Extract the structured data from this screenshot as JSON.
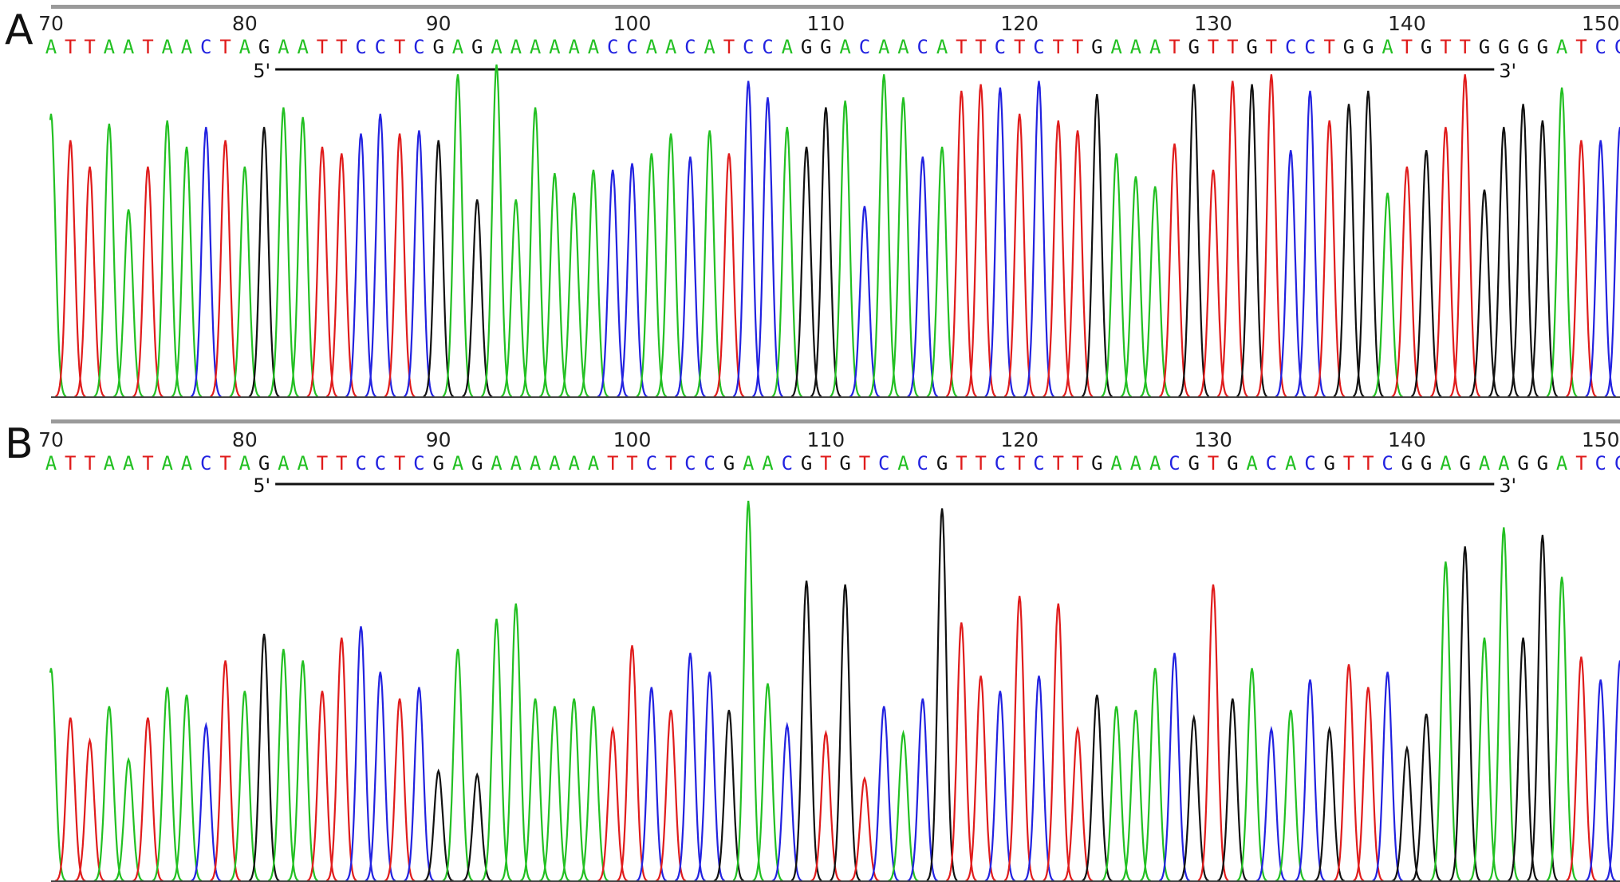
{
  "colors": {
    "A": "#22c022",
    "C": "#2222e0",
    "G": "#111111",
    "T": "#e01c1c"
  },
  "chart_data": [
    {
      "type": "line",
      "panel": "A",
      "xlim": [
        70,
        151
      ],
      "ticks": [
        70,
        80,
        90,
        100,
        110,
        120,
        130,
        140,
        150
      ],
      "tick_labels": [
        "70",
        "80",
        "90",
        "100",
        "110",
        "120",
        "130",
        "140",
        "150"
      ],
      "sequence": "ATTAATAACTAGAATTCCTCGAGAAAAAACCAACATCCAGGACAACATTCTCTTGAAATGTTGTCCTGGATGTTGGGGATCCTC",
      "primer": {
        "start": 81,
        "end": 145,
        "label_5": "5'",
        "label_3": "3'"
      },
      "peak_heights": [
        0.86,
        0.78,
        0.7,
        0.83,
        0.57,
        0.7,
        0.84,
        0.76,
        0.82,
        0.78,
        0.7,
        0.82,
        0.88,
        0.85,
        0.76,
        0.74,
        0.8,
        0.86,
        0.8,
        0.81,
        0.78,
        0.98,
        0.6,
        1.01,
        0.6,
        0.88,
        0.68,
        0.62,
        0.69,
        0.69,
        0.71,
        0.74,
        0.8,
        0.73,
        0.81,
        0.74,
        0.96,
        0.91,
        0.82,
        0.76,
        0.88,
        0.9,
        0.58,
        0.98,
        0.91,
        0.73,
        0.76,
        0.93,
        0.95,
        0.94,
        0.86,
        0.96,
        0.84,
        0.81,
        0.92,
        0.74,
        0.67,
        0.64,
        0.77,
        0.95,
        0.69,
        0.96,
        0.95,
        0.98,
        0.75,
        0.93,
        0.84,
        0.89,
        0.93,
        0.62,
        0.7,
        0.75,
        0.82,
        0.98,
        0.63,
        0.82,
        0.89,
        0.84,
        0.94,
        0.78,
        0.78,
        0.82,
        0.84,
        0.73
      ]
    },
    {
      "type": "line",
      "panel": "B",
      "xlim": [
        70,
        151
      ],
      "ticks": [
        70,
        80,
        90,
        100,
        110,
        120,
        130,
        140,
        150
      ],
      "tick_labels": [
        "70",
        "80",
        "90",
        "100",
        "110",
        "120",
        "130",
        "140",
        "150"
      ],
      "sequence": "ATTAATAACTAGAATTCCTCGAGAAAAAATTCTCCGAACGTGTCACGTTCTCTTGAAACGTGACACGTTCGGAGAAGGATCCT",
      "primer": {
        "start": 81,
        "end": 145,
        "label_5": "5'",
        "label_3": "3'"
      },
      "peak_heights": [
        0.56,
        0.43,
        0.37,
        0.46,
        0.32,
        0.43,
        0.51,
        0.49,
        0.41,
        0.58,
        0.5,
        0.65,
        0.61,
        0.58,
        0.5,
        0.64,
        0.67,
        0.55,
        0.48,
        0.51,
        0.29,
        0.61,
        0.28,
        0.69,
        0.73,
        0.48,
        0.46,
        0.48,
        0.46,
        0.4,
        0.62,
        0.51,
        0.45,
        0.6,
        0.55,
        0.45,
        1.0,
        0.52,
        0.41,
        0.79,
        0.39,
        0.78,
        0.27,
        0.46,
        0.39,
        0.48,
        0.98,
        0.68,
        0.54,
        0.5,
        0.75,
        0.54,
        0.73,
        0.4,
        0.49,
        0.46,
        0.45,
        0.56,
        0.6,
        0.43,
        0.78,
        0.48,
        0.56,
        0.4,
        0.45,
        0.53,
        0.4,
        0.57,
        0.51,
        0.55,
        0.35,
        0.44,
        0.84,
        0.88,
        0.64,
        0.93,
        0.64,
        0.91,
        0.8,
        0.59,
        0.53,
        0.58,
        0.53
      ]
    }
  ]
}
